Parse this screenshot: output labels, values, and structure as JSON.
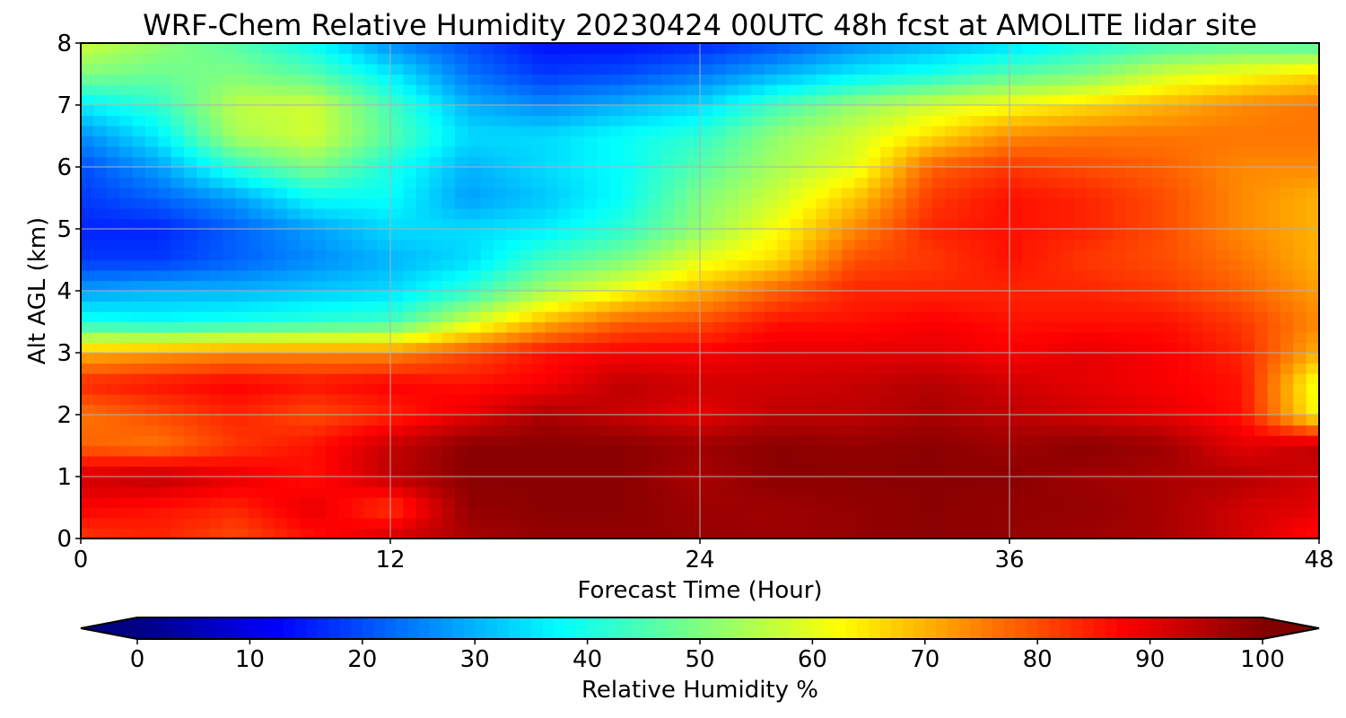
{
  "chart_data": {
    "type": "heatmap",
    "title": "WRF-Chem Relative Humidity 20230424 00UTC 48h fcst at AMOLITE lidar site",
    "xlabel": "Forecast Time (Hour)",
    "ylabel": "Alt AGL (km)",
    "xlim": [
      0,
      48
    ],
    "ylim": [
      0,
      8
    ],
    "xticks": [
      0,
      12,
      24,
      36,
      48
    ],
    "yticks": [
      0,
      1,
      2,
      3,
      4,
      5,
      6,
      7,
      8
    ],
    "grid": true,
    "colormap": "jet",
    "colorbar": {
      "label": "Relative Humidity %",
      "range": [
        0,
        100
      ],
      "ticks": [
        0,
        10,
        20,
        30,
        40,
        50,
        60,
        70,
        80,
        90,
        100
      ],
      "extend": "both",
      "orientation": "horizontal"
    },
    "x": [
      0,
      3,
      6,
      9,
      12,
      15,
      18,
      21,
      24,
      27,
      30,
      33,
      36,
      39,
      42,
      45,
      48
    ],
    "y": [
      0,
      0.5,
      1,
      1.5,
      2,
      2.5,
      3,
      3.5,
      4,
      4.5,
      5,
      5.5,
      6,
      6.5,
      7,
      7.5,
      8
    ],
    "z": [
      [
        82,
        84,
        80,
        86,
        92,
        96,
        98,
        98,
        98,
        97,
        98,
        99,
        98,
        97,
        96,
        92,
        86
      ],
      [
        88,
        86,
        84,
        90,
        82,
        98,
        99,
        99,
        97,
        97,
        98,
        99,
        98,
        98,
        96,
        92,
        90
      ],
      [
        92,
        94,
        90,
        86,
        94,
        99,
        99,
        99,
        96,
        99,
        99,
        99,
        99,
        97,
        96,
        95,
        92
      ],
      [
        78,
        76,
        82,
        86,
        93,
        99,
        99,
        99,
        97,
        99,
        98,
        99,
        97,
        99,
        97,
        90,
        94
      ],
      [
        76,
        80,
        84,
        80,
        84,
        90,
        96,
        93,
        90,
        94,
        94,
        96,
        94,
        92,
        90,
        86,
        62
      ],
      [
        84,
        86,
        88,
        86,
        88,
        86,
        88,
        94,
        92,
        92,
        93,
        95,
        92,
        90,
        88,
        86,
        60
      ],
      [
        70,
        72,
        74,
        74,
        74,
        80,
        86,
        88,
        88,
        90,
        90,
        90,
        88,
        90,
        88,
        84,
        70
      ],
      [
        40,
        38,
        40,
        42,
        44,
        58,
        70,
        78,
        80,
        86,
        86,
        88,
        86,
        86,
        86,
        82,
        74
      ],
      [
        28,
        30,
        30,
        32,
        34,
        42,
        54,
        62,
        70,
        78,
        84,
        84,
        84,
        84,
        82,
        78,
        72
      ],
      [
        18,
        18,
        22,
        26,
        30,
        34,
        44,
        50,
        60,
        66,
        80,
        82,
        86,
        82,
        80,
        76,
        70
      ],
      [
        16,
        16,
        22,
        28,
        34,
        34,
        36,
        42,
        52,
        62,
        74,
        84,
        86,
        84,
        80,
        74,
        70
      ],
      [
        18,
        22,
        28,
        38,
        38,
        28,
        32,
        38,
        50,
        58,
        68,
        82,
        86,
        84,
        80,
        74,
        70
      ],
      [
        20,
        28,
        42,
        50,
        40,
        30,
        34,
        38,
        46,
        54,
        60,
        78,
        82,
        80,
        78,
        74,
        74
      ],
      [
        26,
        36,
        54,
        58,
        46,
        34,
        34,
        38,
        42,
        52,
        58,
        66,
        74,
        76,
        76,
        76,
        76
      ],
      [
        36,
        42,
        56,
        58,
        44,
        30,
        26,
        30,
        34,
        44,
        52,
        58,
        62,
        66,
        70,
        74,
        76
      ],
      [
        50,
        48,
        50,
        46,
        36,
        24,
        18,
        20,
        24,
        30,
        36,
        40,
        46,
        50,
        58,
        62,
        66
      ],
      [
        58,
        52,
        46,
        38,
        26,
        20,
        14,
        14,
        16,
        20,
        26,
        30,
        34,
        40,
        44,
        46,
        44
      ]
    ]
  }
}
